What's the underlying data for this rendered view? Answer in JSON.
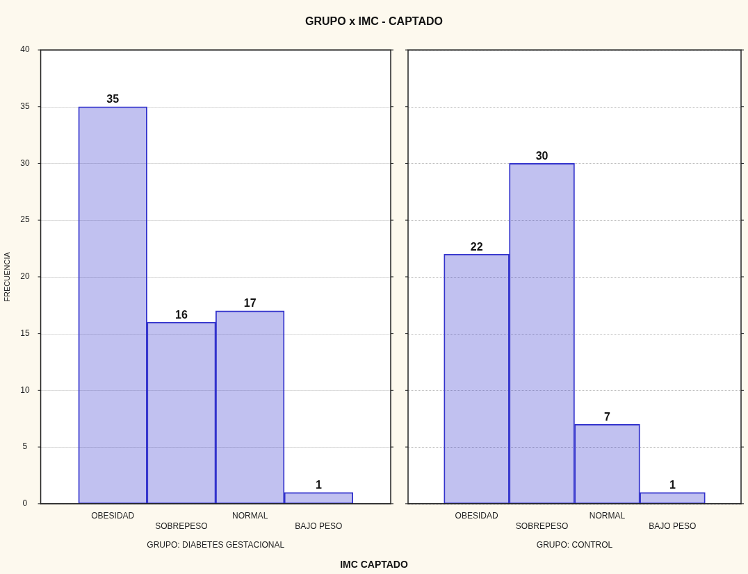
{
  "chart_data": [
    {
      "type": "bar",
      "title": "GRUPO x IMC - CAPTADO",
      "ylabel": "FRECUENCIA",
      "xlabel": "GRUPO: DIABETES GESTACIONAL",
      "annotations": [
        "IMC CAPTADO"
      ],
      "categories": [
        "OBESIDAD",
        "SOBREPESO",
        "NORMAL",
        "BAJO PESO"
      ],
      "values": [
        35,
        16,
        17,
        1
      ],
      "color": "#3333cc",
      "ylim": [
        0,
        40
      ],
      "yticks": [
        0,
        5,
        10,
        15,
        20,
        25,
        30,
        35,
        40
      ],
      "grid": "y",
      "data_labels": true
    },
    {
      "type": "bar",
      "xlabel": "GRUPO: CONTROL",
      "categories": [
        "OBESIDAD",
        "SOBREPESO",
        "NORMAL",
        "BAJO PESO"
      ],
      "values": [
        22,
        30,
        7,
        1
      ],
      "color": "#3333cc",
      "ylim": [
        0,
        40
      ],
      "yticks": [
        0,
        5,
        10,
        15,
        20,
        25,
        30,
        35,
        40
      ],
      "grid": "y",
      "data_labels": true,
      "tick_labels": "x"
    }
  ]
}
